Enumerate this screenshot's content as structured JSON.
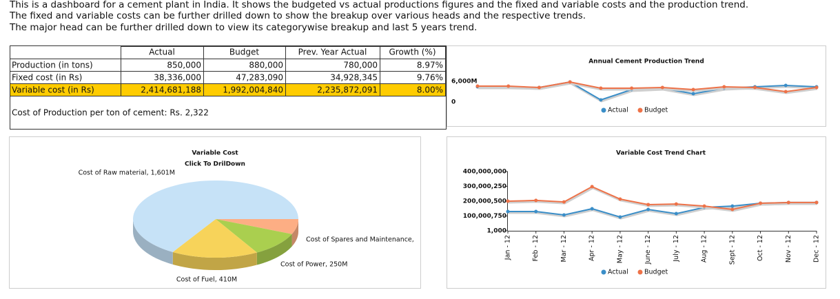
{
  "description": [
    "This is a dashboard for a cement plant in India. It shows the budgeted vs actual productions figures and the fixed and variable costs and the production trend.",
    "The fixed and variable costs can be further drilled down to show the breakup over various heads and the respective trends.",
    "The major head can be further drilled down to view its categorywise breakup and last 5 years trend."
  ],
  "table": {
    "header": [
      "Actual",
      "Budget",
      "Prev. Year Actual",
      "Growth (%)"
    ],
    "rows": [
      [
        "Production (in tons)",
        "850,000",
        "880,000",
        "780,000",
        "8.97%"
      ],
      [
        "Fixed cost (in Rs)",
        "38,336,000",
        "47,283,090",
        "34,928,345",
        "9.76%"
      ],
      [
        "Variable cost (in Rs)",
        "2,414,681,188",
        "1,992,004,840",
        "2,235,872,091",
        "8.00%"
      ]
    ],
    "note": "Cost of Production per ton of cement: Rs. 2,322"
  },
  "chart_data": [
    {
      "type": "line",
      "title": "Annual Cement Production Trend",
      "categories": [
        null,
        null,
        null,
        null,
        null,
        null,
        null,
        null,
        null,
        null,
        null,
        null
      ],
      "series": [
        {
          "name": "Actual",
          "color": "#3a8ec8",
          "values": [
            4400000000,
            4400000000,
            4200000000,
            5800000000,
            600000000,
            3600000000,
            4000000000,
            2400000000,
            4000000000,
            4400000000,
            4800000000,
            4400000000
          ]
        },
        {
          "name": "Budget",
          "color": "#ee7248",
          "values": [
            4600000000,
            4600000000,
            4200000000,
            5800000000,
            4000000000,
            4000000000,
            4200000000,
            3600000000,
            4400000000,
            4200000000,
            3000000000,
            4200000000
          ]
        }
      ],
      "ylim": [
        0,
        6000000000
      ],
      "yticks": [
        0,
        {
          "value": 6000000000,
          "label": "6,000M"
        }
      ]
    },
    {
      "type": "pie",
      "title": "Variable Cost",
      "subtitle": "Click To DrilDown",
      "categories": [
        "Cost of Spares and Maintenance,",
        "Cost of Power, 250M",
        "Cost of Fuel, 410M",
        "Cost of Raw material, 1,601M"
      ],
      "values": [
        153000000,
        250000000,
        410000000,
        1601000000
      ],
      "colors": [
        "#fdae84",
        "#aacf4f",
        "#f7d35a",
        "#c6e2f7"
      ]
    },
    {
      "type": "line",
      "title": "Variable Cost Trend Chart",
      "categories": [
        "Jan - 12",
        "Feb - 12",
        "Mar - 12",
        "Apr - 12",
        "May - 12",
        "June - 12",
        "July - 12",
        "Aug - 12",
        "Sept - 12",
        "Oct - 12",
        "Nov - 12",
        "Dec - 12"
      ],
      "series": [
        {
          "name": "Actual",
          "color": "#3a8ec8",
          "values": [
            130000000,
            130000000,
            107000000,
            149000000,
            93000000,
            144000000,
            116000000,
            158000000,
            167000000,
            186000000,
            191000000,
            191000000
          ]
        },
        {
          "name": "Budget",
          "color": "#ee7248",
          "values": [
            200000000,
            205000000,
            195000000,
            298000000,
            214000000,
            177000000,
            181000000,
            167000000,
            144000000,
            186000000,
            191000000,
            191000000
          ]
        }
      ],
      "ylim": [
        1000,
        400000000
      ],
      "yticks": [
        {
          "value": 1000,
          "label": "1,000"
        },
        {
          "value": 100000750,
          "label": "100,000,750"
        },
        {
          "value": 200000500,
          "label": "200,000,500"
        },
        {
          "value": 300000250,
          "label": "300,000,250"
        },
        {
          "value": 400000000,
          "label": "400,000,000"
        }
      ]
    }
  ]
}
